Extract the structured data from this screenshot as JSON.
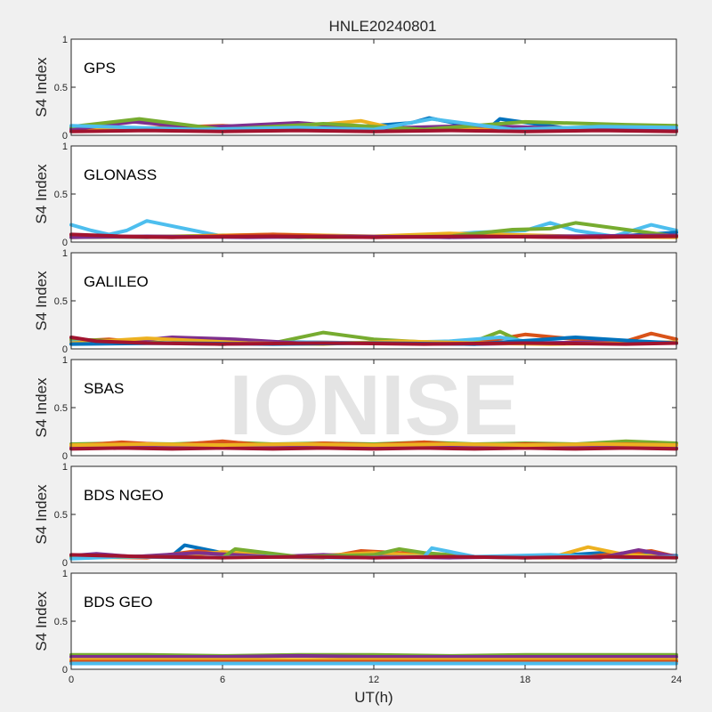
{
  "figure_title": "HNLE20240801",
  "watermark": "IONISE",
  "colors": [
    "#0072bd",
    "#d95319",
    "#edb120",
    "#7e2f8e",
    "#77ac30",
    "#4dbeee",
    "#a2142f"
  ],
  "chart_data": {
    "type": "line",
    "title": "HNLE20240801",
    "xlabel": "UT(h)",
    "ylabel": "S4 Index",
    "xlim": [
      0,
      24
    ],
    "ylim": [
      0,
      1
    ],
    "xticks": [
      0,
      6,
      12,
      18,
      24
    ],
    "xtick_labels": [
      "0",
      "6",
      "12",
      "18",
      "24"
    ],
    "yticks": [
      0,
      0.5,
      1
    ],
    "ytick_labels": [
      "0",
      "0.5",
      "1"
    ],
    "grid": false,
    "panels": [
      {
        "label": "GPS",
        "tracks": [
          {
            "color": "#0072bd",
            "x": [
              0,
              3,
              7,
              11,
              13.5,
              14.2,
              16.5,
              17,
              20,
              24
            ],
            "y": [
              0.07,
              0.07,
              0.07,
              0.08,
              0.13,
              0.18,
              0.06,
              0.17,
              0.06,
              0.06
            ]
          },
          {
            "color": "#d95319",
            "x": [
              0,
              2.5,
              6,
              9,
              12,
              15,
              19,
              24
            ],
            "y": [
              0.06,
              0.07,
              0.1,
              0.06,
              0.07,
              0.06,
              0.08,
              0.06
            ]
          },
          {
            "color": "#edb120",
            "x": [
              0,
              4,
              8,
              11.5,
              13,
              17,
              21,
              24
            ],
            "y": [
              0.06,
              0.06,
              0.07,
              0.15,
              0.06,
              0.09,
              0.06,
              0.1
            ]
          },
          {
            "color": "#7e2f8e",
            "x": [
              0,
              2.5,
              5,
              9,
              12,
              16,
              20,
              24
            ],
            "y": [
              0.06,
              0.14,
              0.08,
              0.13,
              0.07,
              0.1,
              0.07,
              0.06
            ]
          },
          {
            "color": "#77ac30",
            "x": [
              0,
              2.7,
              6,
              10,
              14,
              18,
              22,
              24
            ],
            "y": [
              0.09,
              0.17,
              0.06,
              0.12,
              0.06,
              0.14,
              0.11,
              0.1
            ]
          },
          {
            "color": "#4dbeee",
            "x": [
              0,
              5,
              9,
              12,
              14.3,
              17.5,
              21,
              24
            ],
            "y": [
              0.1,
              0.06,
              0.08,
              0.06,
              0.17,
              0.06,
              0.09,
              0.08
            ]
          },
          {
            "color": "#a2142f",
            "x": [
              0,
              3,
              6,
              9,
              12,
              15,
              18,
              21,
              24
            ],
            "y": [
              0.04,
              0.05,
              0.04,
              0.05,
              0.04,
              0.05,
              0.04,
              0.05,
              0.04
            ]
          }
        ]
      },
      {
        "label": "GLONASS",
        "tracks": [
          {
            "color": "#4dbeee",
            "x": [
              0,
              0.8,
              1.5,
              2.2,
              3,
              6,
              10,
              14,
              16,
              18,
              19,
              20,
              21.5,
              23,
              24
            ],
            "y": [
              0.18,
              0.12,
              0.08,
              0.12,
              0.22,
              0.06,
              0.06,
              0.06,
              0.1,
              0.12,
              0.2,
              0.12,
              0.06,
              0.18,
              0.12
            ]
          },
          {
            "color": "#0072bd",
            "x": [
              0,
              3,
              6,
              9,
              12,
              15,
              18,
              21,
              24
            ],
            "y": [
              0.06,
              0.05,
              0.07,
              0.05,
              0.06,
              0.05,
              0.07,
              0.05,
              0.1
            ]
          },
          {
            "color": "#edb120",
            "x": [
              0,
              4,
              8,
              12,
              15,
              17,
              20,
              24
            ],
            "y": [
              0.05,
              0.06,
              0.08,
              0.06,
              0.09,
              0.08,
              0.06,
              0.05
            ]
          },
          {
            "color": "#77ac30",
            "x": [
              0,
              5,
              10,
              15,
              17.5,
              19,
              20,
              24
            ],
            "y": [
              0.05,
              0.06,
              0.05,
              0.06,
              0.13,
              0.14,
              0.2,
              0.06
            ]
          },
          {
            "color": "#d95319",
            "x": [
              0,
              4,
              8,
              12,
              16,
              20,
              24
            ],
            "y": [
              0.06,
              0.05,
              0.08,
              0.05,
              0.06,
              0.05,
              0.06
            ]
          },
          {
            "color": "#7e2f8e",
            "x": [
              0,
              3,
              7,
              11,
              15,
              19,
              24
            ],
            "y": [
              0.05,
              0.06,
              0.05,
              0.06,
              0.05,
              0.06,
              0.07
            ]
          },
          {
            "color": "#a2142f",
            "x": [
              0,
              2,
              4,
              8,
              12,
              16,
              20,
              24
            ],
            "y": [
              0.08,
              0.06,
              0.05,
              0.06,
              0.05,
              0.06,
              0.05,
              0.06
            ]
          }
        ]
      },
      {
        "label": "GALILEO",
        "tracks": [
          {
            "color": "#d95319",
            "x": [
              0,
              1.5,
              3,
              5,
              9,
              12,
              16,
              18,
              20,
              22,
              23,
              24
            ],
            "y": [
              0.08,
              0.1,
              0.06,
              0.06,
              0.07,
              0.06,
              0.06,
              0.15,
              0.1,
              0.08,
              0.16,
              0.1
            ]
          },
          {
            "color": "#77ac30",
            "x": [
              0,
              2,
              4,
              6,
              8,
              10,
              12,
              14,
              16,
              17,
              18,
              24
            ],
            "y": [
              0.1,
              0.08,
              0.06,
              0.05,
              0.06,
              0.17,
              0.1,
              0.07,
              0.08,
              0.18,
              0.06,
              0.06
            ]
          },
          {
            "color": "#4dbeee",
            "x": [
              0,
              3,
              6,
              9,
              12,
              15,
              17,
              18,
              20,
              24
            ],
            "y": [
              0.07,
              0.06,
              0.05,
              0.07,
              0.06,
              0.08,
              0.12,
              0.08,
              0.06,
              0.07
            ]
          },
          {
            "color": "#7e2f8e",
            "x": [
              0,
              2,
              4,
              6.5,
              9,
              12,
              16,
              21,
              24
            ],
            "y": [
              0.06,
              0.07,
              0.12,
              0.1,
              0.06,
              0.06,
              0.05,
              0.07,
              0.06
            ]
          },
          {
            "color": "#edb120",
            "x": [
              0,
              3,
              7,
              10,
              13,
              16,
              19,
              22,
              24
            ],
            "y": [
              0.06,
              0.11,
              0.06,
              0.05,
              0.08,
              0.06,
              0.05,
              0.06,
              0.07
            ]
          },
          {
            "color": "#0072bd",
            "x": [
              0,
              4,
              8,
              12,
              16,
              20,
              22.5,
              24
            ],
            "y": [
              0.05,
              0.06,
              0.05,
              0.06,
              0.05,
              0.12,
              0.08,
              0.06
            ]
          },
          {
            "color": "#a2142f",
            "x": [
              0,
              1,
              3,
              6,
              10,
              14,
              18,
              22,
              24
            ],
            "y": [
              0.12,
              0.08,
              0.06,
              0.05,
              0.06,
              0.05,
              0.06,
              0.05,
              0.06
            ]
          }
        ]
      },
      {
        "label": "SBAS",
        "tracks": [
          {
            "color": "#77ac30",
            "x": [
              0,
              2,
              4,
              6,
              8,
              10,
              12,
              14,
              16,
              18,
              20,
              22,
              24
            ],
            "y": [
              0.12,
              0.13,
              0.12,
              0.14,
              0.12,
              0.13,
              0.12,
              0.14,
              0.12,
              0.13,
              0.12,
              0.15,
              0.13
            ]
          },
          {
            "color": "#d95319",
            "x": [
              0,
              2,
              4,
              6,
              8,
              10,
              12,
              14,
              16,
              18,
              20,
              22,
              24
            ],
            "y": [
              0.1,
              0.14,
              0.11,
              0.15,
              0.1,
              0.13,
              0.11,
              0.14,
              0.1,
              0.12,
              0.11,
              0.12,
              0.11
            ]
          },
          {
            "color": "#7e2f8e",
            "x": [
              0,
              2,
              4,
              6,
              8,
              10,
              12,
              14,
              16,
              18,
              20,
              22,
              24
            ],
            "y": [
              0.08,
              0.09,
              0.08,
              0.1,
              0.08,
              0.09,
              0.08,
              0.09,
              0.08,
              0.1,
              0.08,
              0.09,
              0.08
            ]
          },
          {
            "color": "#a2142f",
            "x": [
              0,
              2,
              4,
              6,
              8,
              10,
              12,
              14,
              16,
              18,
              20,
              22,
              24
            ],
            "y": [
              0.07,
              0.08,
              0.07,
              0.08,
              0.07,
              0.08,
              0.07,
              0.08,
              0.07,
              0.08,
              0.07,
              0.08,
              0.07
            ]
          },
          {
            "color": "#edb120",
            "x": [
              0,
              3,
              6,
              9,
              12,
              15,
              18,
              21,
              24
            ],
            "y": [
              0.11,
              0.12,
              0.11,
              0.12,
              0.11,
              0.12,
              0.11,
              0.12,
              0.11
            ]
          }
        ]
      },
      {
        "label": "BDS NGEO",
        "tracks": [
          {
            "color": "#0072bd",
            "x": [
              0,
              2,
              4,
              4.5,
              6,
              9,
              12,
              15,
              18,
              21,
              24
            ],
            "y": [
              0.05,
              0.06,
              0.07,
              0.18,
              0.1,
              0.06,
              0.05,
              0.06,
              0.05,
              0.1,
              0.07
            ]
          },
          {
            "color": "#d95319",
            "x": [
              0,
              3,
              5,
              7,
              10,
              11.5,
              13,
              16,
              20,
              22,
              23,
              24
            ],
            "y": [
              0.06,
              0.05,
              0.12,
              0.06,
              0.05,
              0.12,
              0.1,
              0.06,
              0.05,
              0.1,
              0.12,
              0.06
            ]
          },
          {
            "color": "#edb120",
            "x": [
              0,
              4,
              6,
              9,
              12,
              15,
              19,
              20.5,
              22,
              24
            ],
            "y": [
              0.05,
              0.06,
              0.11,
              0.06,
              0.1,
              0.06,
              0.05,
              0.16,
              0.08,
              0.06
            ]
          },
          {
            "color": "#7e2f8e",
            "x": [
              0,
              1,
              2.5,
              5,
              8,
              10,
              12,
              15,
              18,
              21,
              22.5,
              24
            ],
            "y": [
              0.07,
              0.09,
              0.06,
              0.1,
              0.06,
              0.08,
              0.06,
              0.05,
              0.06,
              0.05,
              0.13,
              0.06
            ]
          },
          {
            "color": "#77ac30",
            "x": [
              0,
              3,
              6,
              6.5,
              9,
              12,
              13,
              14,
              16,
              18,
              21,
              24
            ],
            "y": [
              0.05,
              0.06,
              0.05,
              0.14,
              0.06,
              0.08,
              0.14,
              0.1,
              0.06,
              0.05,
              0.06,
              0.05
            ]
          },
          {
            "color": "#4dbeee",
            "x": [
              0,
              2,
              5,
              8,
              11,
              14,
              14.3,
              16,
              19,
              22,
              24
            ],
            "y": [
              0.04,
              0.06,
              0.05,
              0.06,
              0.05,
              0.06,
              0.15,
              0.06,
              0.08,
              0.05,
              0.06
            ]
          },
          {
            "color": "#a2142f",
            "x": [
              0,
              3,
              6,
              9,
              12,
              15,
              18,
              21,
              24
            ],
            "y": [
              0.08,
              0.06,
              0.05,
              0.06,
              0.05,
              0.06,
              0.05,
              0.06,
              0.05
            ]
          }
        ]
      },
      {
        "label": "BDS GEO",
        "tracks": [
          {
            "color": "#77ac30",
            "x": [
              0,
              3,
              6,
              9,
              12,
              15,
              18,
              21,
              24
            ],
            "y": [
              0.15,
              0.15,
              0.14,
              0.15,
              0.15,
              0.14,
              0.15,
              0.15,
              0.15
            ]
          },
          {
            "color": "#7e2f8e",
            "x": [
              0,
              3,
              6,
              9,
              12,
              15,
              18,
              21,
              24
            ],
            "y": [
              0.13,
              0.13,
              0.13,
              0.14,
              0.13,
              0.13,
              0.13,
              0.13,
              0.13
            ]
          },
          {
            "color": "#edb120",
            "x": [
              0,
              3,
              6,
              9,
              12,
              15,
              18,
              21,
              24
            ],
            "y": [
              0.1,
              0.1,
              0.1,
              0.1,
              0.1,
              0.1,
              0.1,
              0.1,
              0.1
            ]
          },
          {
            "color": "#d95319",
            "x": [
              0,
              3,
              6,
              9,
              12,
              15,
              18,
              21,
              24
            ],
            "y": [
              0.08,
              0.08,
              0.08,
              0.08,
              0.08,
              0.08,
              0.08,
              0.08,
              0.08
            ]
          },
          {
            "color": "#4dbeee",
            "x": [
              0,
              3,
              6,
              9,
              12,
              15,
              18,
              21,
              24
            ],
            "y": [
              0.06,
              0.06,
              0.06,
              0.06,
              0.06,
              0.06,
              0.06,
              0.06,
              0.06
            ]
          }
        ]
      }
    ]
  }
}
